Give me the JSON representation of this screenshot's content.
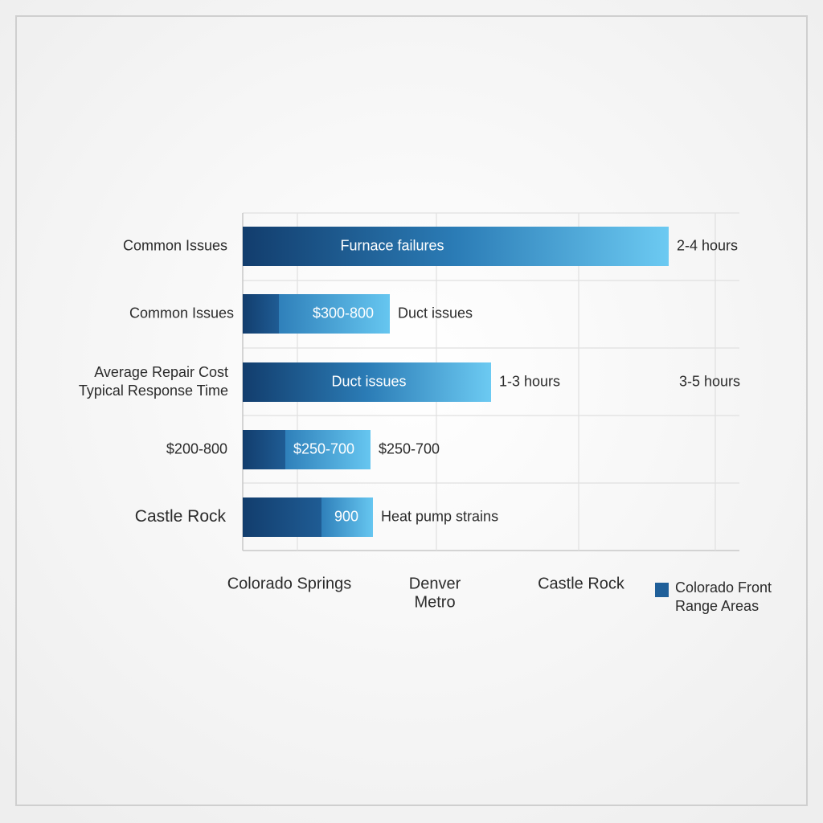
{
  "rows": [
    {
      "label_lines": [
        "Common Issues"
      ],
      "bar_text": "Furnace failures",
      "after_text": "2-4 hours"
    },
    {
      "label_lines": [
        "Common Issues"
      ],
      "bar_text": "$300-800",
      "after_text": "Duct issues"
    },
    {
      "label_lines": [
        "Average Repair Cost",
        "Typical Response Time"
      ],
      "bar_text": "Duct issues",
      "after_text": "1-3 hours",
      "right_text": "3-5 hours"
    },
    {
      "label_lines": [
        "$200-800"
      ],
      "bar_text": "$250-700",
      "after_text": "$250-700"
    },
    {
      "label_lines": [
        "Castle Rock"
      ],
      "bar_text": "900",
      "after_text": "Heat pump strains"
    }
  ],
  "x_labels": [
    [
      "Colorado Springs"
    ],
    [
      "Denver",
      "Metro"
    ],
    [
      "Castle Rock"
    ]
  ],
  "legend": {
    "lines": [
      "Colorado Front",
      "Range Areas"
    ]
  }
}
